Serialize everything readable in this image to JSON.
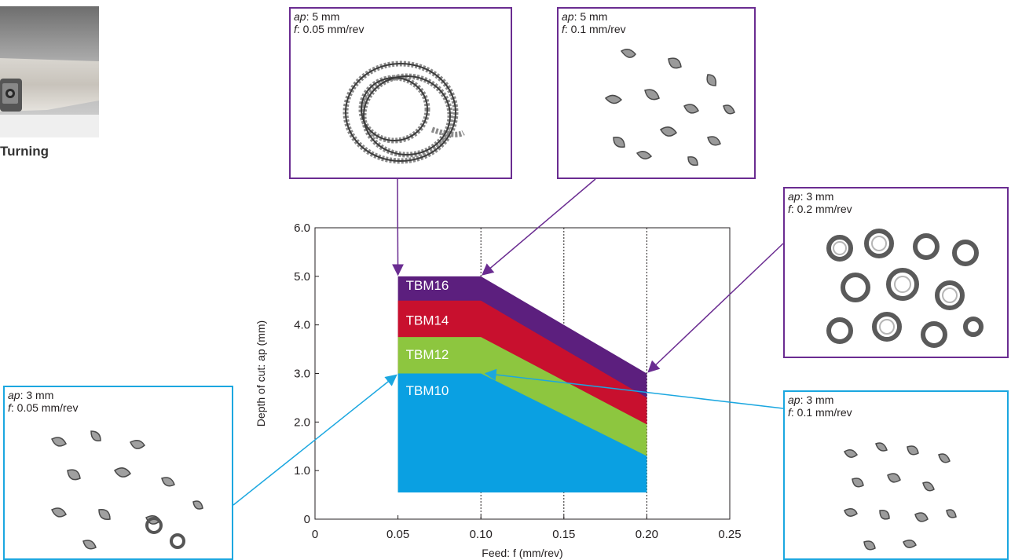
{
  "turning": {
    "label": "Turning"
  },
  "callouts": [
    {
      "ap_label": "ap",
      "ap_value": ": 5 mm",
      "f_label": "f",
      "f_value": ": 0.05 mm/rev",
      "color": "#6a2c91"
    },
    {
      "ap_label": "ap",
      "ap_value": ": 5 mm",
      "f_label": "f",
      "f_value": ": 0.1 mm/rev",
      "color": "#6a2c91"
    },
    {
      "ap_label": "ap",
      "ap_value": ": 3 mm",
      "f_label": "f",
      "f_value": ": 0.2 mm/rev",
      "color": "#6a2c91"
    },
    {
      "ap_label": "ap",
      "ap_value": ": 3 mm",
      "f_label": "f",
      "f_value": ": 0.05 mm/rev",
      "color": "#1ba7e0"
    },
    {
      "ap_label": "ap",
      "ap_value": ": 3 mm",
      "f_label": "f",
      "f_value": ": 0.1 mm/rev",
      "color": "#1ba7e0"
    }
  ],
  "chart_data": {
    "type": "area",
    "xlabel": "Feed: f  (mm/rev)",
    "ylabel": "Depth of cut: ap (mm)",
    "xlim": [
      0,
      0.25
    ],
    "ylim": [
      0,
      6.0
    ],
    "x_ticks": [
      "0",
      "0.05",
      "0.10",
      "0.15",
      "0.20",
      "0.25"
    ],
    "x_tick_values": [
      0,
      0.05,
      0.1,
      0.15,
      0.2,
      0.25
    ],
    "y_ticks": [
      "0",
      "1.0",
      "2.0",
      "3.0",
      "4.0",
      "5.0",
      "6.0"
    ],
    "y_tick_values": [
      0,
      1.0,
      2.0,
      3.0,
      4.0,
      5.0,
      6.0
    ],
    "vertical_gridlines": [
      0.1,
      0.15,
      0.2
    ],
    "x": [
      0.05,
      0.1,
      0.2
    ],
    "baseline": 0.55,
    "series": [
      {
        "name": "TBM16",
        "values": [
          5.0,
          5.0,
          3.0
        ],
        "color": "#5c1f7e"
      },
      {
        "name": "TBM14",
        "values": [
          4.5,
          4.5,
          2.5
        ],
        "color": "#c8102e"
      },
      {
        "name": "TBM12",
        "values": [
          3.75,
          3.75,
          1.95
        ],
        "color": "#8dc63f"
      },
      {
        "name": "TBM10",
        "values": [
          3.0,
          3.0,
          1.3
        ],
        "color": "#0aa0e2"
      }
    ],
    "series_label_y": [
      4.82,
      4.1,
      3.4,
      2.65
    ]
  }
}
